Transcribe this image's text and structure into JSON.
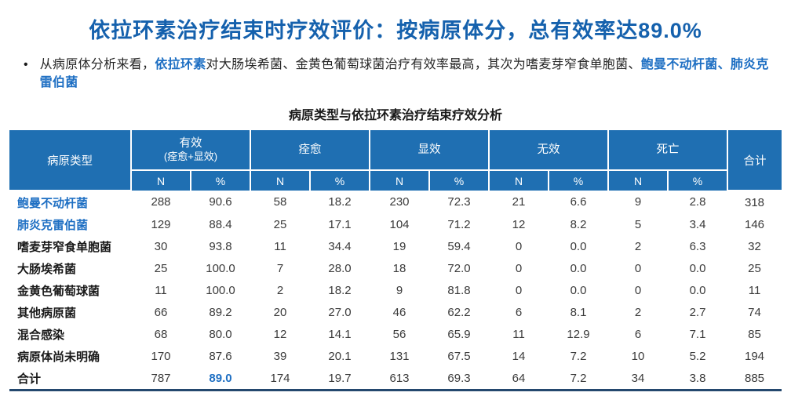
{
  "page": {
    "title": "依拉环素治疗结束时疗效评价：按病原体分，总有效率达89.0%",
    "bullet": {
      "segments": [
        {
          "text": "从病原体分析来看，",
          "style": "normal"
        },
        {
          "text": "依拉环素",
          "style": "blue"
        },
        {
          "text": "对大肠埃希菌、金黄色葡萄球菌治疗有效率最高，其次为嗜麦芽窄食单胞菌、",
          "style": "normal"
        },
        {
          "text": "鲍曼不动杆菌、肺炎克雷伯菌",
          "style": "blue"
        }
      ]
    }
  },
  "table": {
    "title": "病原类型与依拉环素治疗结束疗效分析",
    "header": {
      "pathogen_type": "病原类型",
      "groups": [
        {
          "label": "有效",
          "sublabel": "(痊愈+显效)"
        },
        {
          "label": "痊愈",
          "sublabel": ""
        },
        {
          "label": "显效",
          "sublabel": ""
        },
        {
          "label": "无效",
          "sublabel": ""
        },
        {
          "label": "死亡",
          "sublabel": ""
        }
      ],
      "sub_columns": [
        "N",
        "%"
      ],
      "total": "合计"
    },
    "rows": [
      {
        "label": "鲍曼不动杆菌",
        "highlight": true,
        "values": [
          "288",
          "90.6",
          "58",
          "18.2",
          "230",
          "72.3",
          "21",
          "6.6",
          "9",
          "2.8",
          "318"
        ]
      },
      {
        "label": "肺炎克雷伯菌",
        "highlight": true,
        "values": [
          "129",
          "88.4",
          "25",
          "17.1",
          "104",
          "71.2",
          "12",
          "8.2",
          "5",
          "3.4",
          "146"
        ]
      },
      {
        "label": "嗜麦芽窄食单胞菌",
        "highlight": false,
        "values": [
          "30",
          "93.8",
          "11",
          "34.4",
          "19",
          "59.4",
          "0",
          "0.0",
          "2",
          "6.3",
          "32"
        ]
      },
      {
        "label": "大肠埃希菌",
        "highlight": false,
        "values": [
          "25",
          "100.0",
          "7",
          "28.0",
          "18",
          "72.0",
          "0",
          "0.0",
          "0",
          "0.0",
          "25"
        ]
      },
      {
        "label": "金黄色葡萄球菌",
        "highlight": false,
        "values": [
          "11",
          "100.0",
          "2",
          "18.2",
          "9",
          "81.8",
          "0",
          "0.0",
          "0",
          "0.0",
          "11"
        ]
      },
      {
        "label": "其他病原菌",
        "highlight": false,
        "values": [
          "66",
          "89.2",
          "20",
          "27.0",
          "46",
          "62.2",
          "6",
          "8.1",
          "2",
          "2.7",
          "74"
        ]
      },
      {
        "label": "混合感染",
        "highlight": false,
        "values": [
          "68",
          "80.0",
          "12",
          "14.1",
          "56",
          "65.9",
          "11",
          "12.9",
          "6",
          "7.1",
          "85"
        ]
      },
      {
        "label": "病原体尚未明确",
        "highlight": false,
        "values": [
          "170",
          "87.6",
          "39",
          "20.1",
          "131",
          "67.5",
          "14",
          "7.2",
          "10",
          "5.2",
          "194"
        ]
      },
      {
        "label": "合计",
        "highlight": false,
        "highlight_value_index": 1,
        "values": [
          "787",
          "89.0",
          "174",
          "19.7",
          "613",
          "69.3",
          "64",
          "7.2",
          "34",
          "3.8",
          "885"
        ]
      }
    ]
  },
  "colors": {
    "title_blue": "#1561AD",
    "header_blue": "#1F6FB2",
    "accent_blue": "#1E6FC3",
    "bottom_border_navy": "#24486E"
  }
}
